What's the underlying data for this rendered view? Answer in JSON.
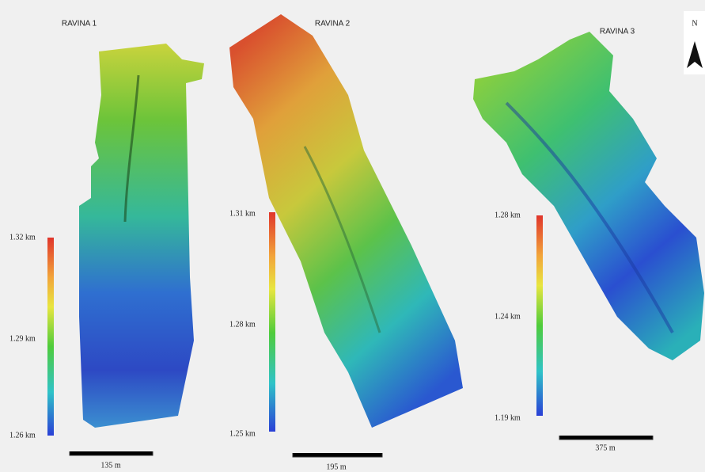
{
  "north": "N",
  "panels": [
    {
      "title": "RAVINA 1",
      "colorbar_labels": [
        "1.32 km",
        "1.29 km",
        "1.26 km"
      ],
      "scale_label": "135 m"
    },
    {
      "title": "RAVINA 2",
      "colorbar_labels": [
        "1.31 km",
        "1.28 km",
        "1.25 km"
      ],
      "scale_label": "195 m"
    },
    {
      "title": "RAVINA 3",
      "colorbar_labels": [
        "1.28 km",
        "1.24 km",
        "1.19 km"
      ],
      "scale_label": "375 m"
    }
  ]
}
